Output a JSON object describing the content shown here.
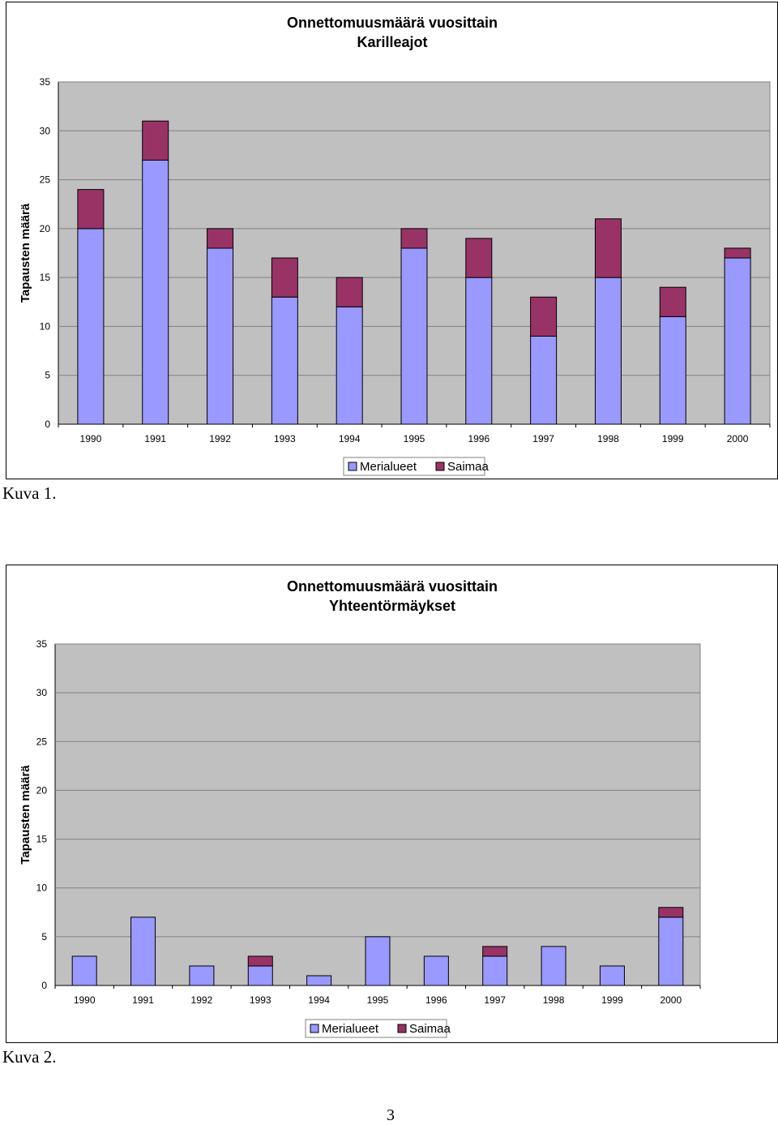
{
  "chart_data": [
    {
      "type": "bar",
      "stacked": true,
      "title": "Onnettomuusmäärä vuosittain",
      "subtitle": "Karilleajot",
      "xlabel": "",
      "ylabel": "Tapausten määrä",
      "ylim": [
        0,
        35
      ],
      "yticks": [
        "0",
        "5",
        "10",
        "15",
        "20",
        "25",
        "30",
        "35"
      ],
      "grid": true,
      "legend_position": "bottom",
      "categories": [
        "1990",
        "1991",
        "1992",
        "1993",
        "1994",
        "1995",
        "1996",
        "1997",
        "1998",
        "1999",
        "2000"
      ],
      "series": [
        {
          "name": "Merialueet",
          "color": "#9999ff",
          "values": [
            20,
            27,
            18,
            13,
            12,
            18,
            15,
            9,
            15,
            11,
            17
          ]
        },
        {
          "name": "Saimaa",
          "color": "#993366",
          "values": [
            4,
            4,
            2,
            4,
            3,
            2,
            4,
            4,
            6,
            3,
            1
          ]
        }
      ]
    },
    {
      "type": "bar",
      "stacked": true,
      "title": "Onnettomuusmäärä vuosittain",
      "subtitle": "Yhteentörmäykset",
      "xlabel": "",
      "ylabel": "Tapausten määrä",
      "ylim": [
        0,
        35
      ],
      "yticks": [
        "0",
        "5",
        "10",
        "15",
        "20",
        "25",
        "30",
        "35"
      ],
      "grid": true,
      "legend_position": "bottom",
      "categories": [
        "1990",
        "1991",
        "1992",
        "1993",
        "1994",
        "1995",
        "1996",
        "1997",
        "1998",
        "1999",
        "2000"
      ],
      "series": [
        {
          "name": "Merialueet",
          "color": "#9999ff",
          "values": [
            3,
            7,
            2,
            2,
            1,
            5,
            3,
            3,
            4,
            2,
            7
          ]
        },
        {
          "name": "Saimaa",
          "color": "#993366",
          "values": [
            0,
            0,
            0,
            1,
            0,
            0,
            0,
            1,
            0,
            0,
            1
          ]
        }
      ]
    }
  ],
  "captions": {
    "figure1": "Kuva 1.",
    "figure2": "Kuva 2."
  },
  "page_number": "3",
  "colors": {
    "plot_background": "#c0c0c0",
    "gridline": "#808080"
  }
}
